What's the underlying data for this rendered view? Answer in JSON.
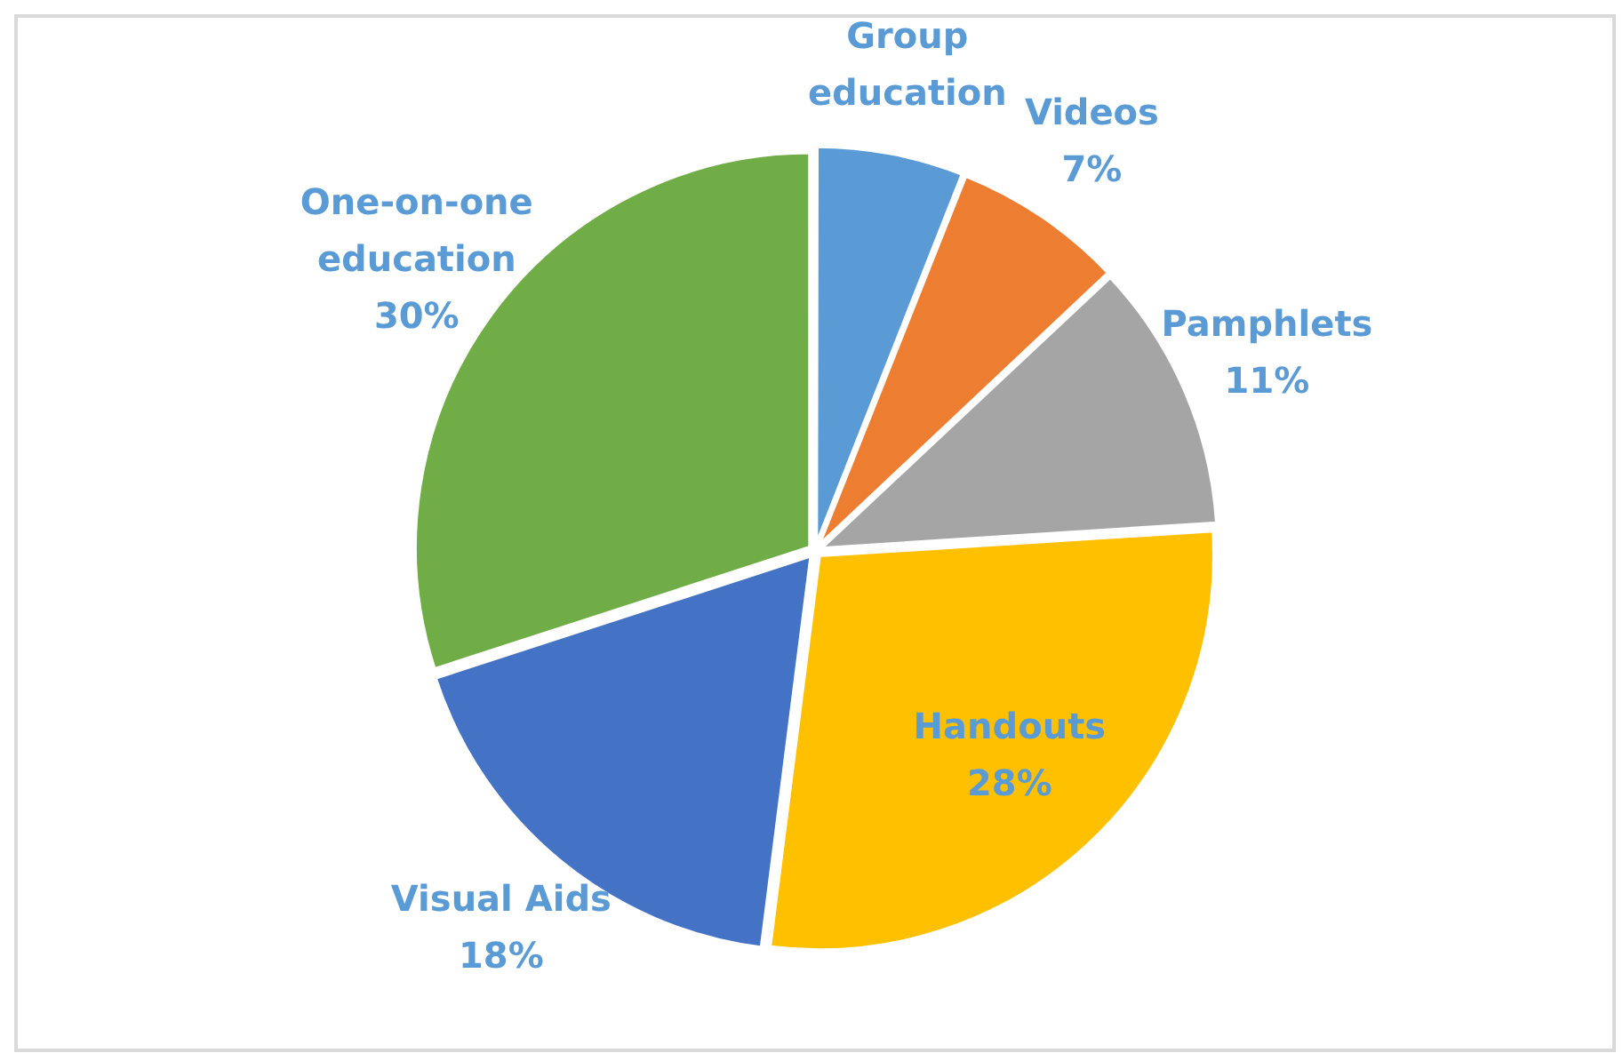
{
  "chart_data": {
    "type": "pie",
    "categories": [
      "Group education",
      "Videos",
      "Pamphlets",
      "Handouts",
      "Visual Aids",
      "One-on-one education"
    ],
    "values": [
      6,
      7,
      11,
      28,
      18,
      30
    ],
    "colors": [
      "#5b9bd5",
      "#ed7d31",
      "#a5a5a5",
      "#ffc000",
      "#4472c4",
      "#70ad47"
    ],
    "value_labels": [
      null,
      "7%",
      "11%",
      "28%",
      "18%",
      "30%"
    ],
    "legend": false
  }
}
